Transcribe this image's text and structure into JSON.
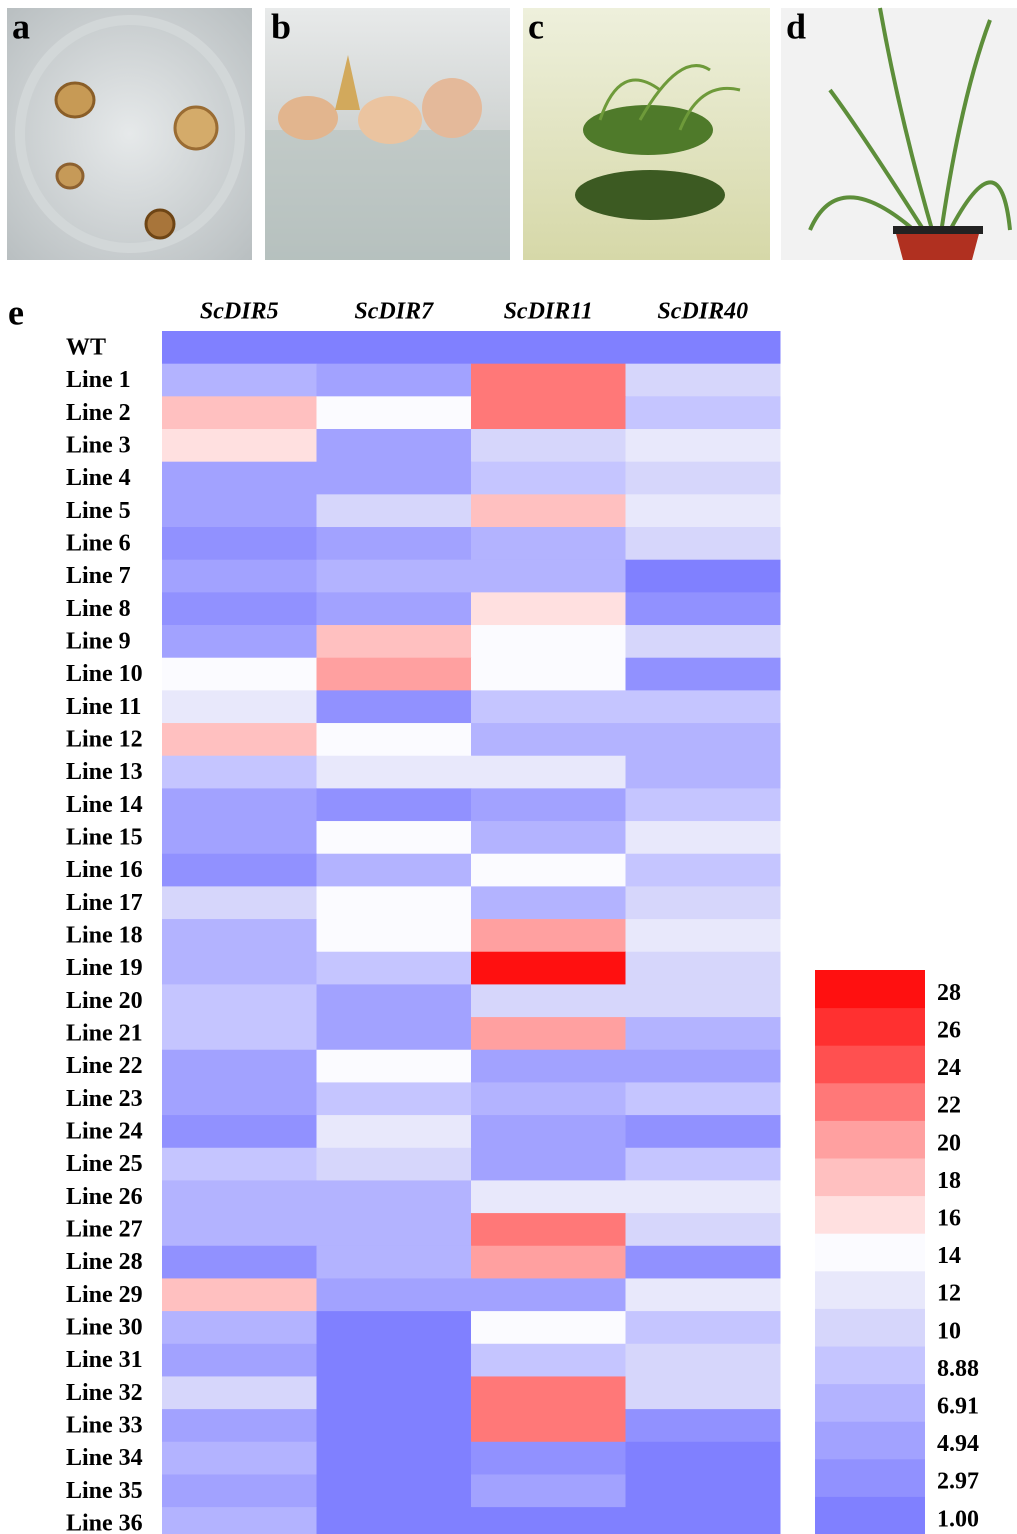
{
  "panels": [
    "a",
    "b",
    "c",
    "d"
  ],
  "chart_data": {
    "type": "heatmap",
    "panel_label": "e",
    "columns": [
      "ScDIR5",
      "ScDIR7",
      "ScDIR11",
      "ScDIR40"
    ],
    "rows": [
      "WT",
      "Line 1",
      "Line 2",
      "Line 3",
      "Line 4",
      "Line 5",
      "Line 6",
      "Line 7",
      "Line 8",
      "Line 9",
      "Line 10",
      "Line 11",
      "Line 12",
      "Line 13",
      "Line 14",
      "Line 15",
      "Line 16",
      "Line 17",
      "Line 18",
      "Line 19",
      "Line 20",
      "Line 21",
      "Line 22",
      "Line 23",
      "Line 24",
      "Line 25",
      "Line 26",
      "Line 27",
      "Line 28",
      "Line 29",
      "Line 30",
      "Line 31",
      "Line 32",
      "Line 33",
      "Line 34",
      "Line 35",
      "Line 36"
    ],
    "values": [
      [
        1,
        1,
        1,
        1
      ],
      [
        6.91,
        4.94,
        22,
        10
      ],
      [
        18,
        14,
        22,
        8.88
      ],
      [
        16,
        4.94,
        10,
        12
      ],
      [
        4.94,
        4.94,
        8.88,
        10
      ],
      [
        4.94,
        10,
        18,
        12
      ],
      [
        2.97,
        4.94,
        6.91,
        10
      ],
      [
        4.94,
        6.91,
        6.91,
        1
      ],
      [
        2.97,
        4.94,
        16,
        2.97
      ],
      [
        4.94,
        18,
        14,
        10
      ],
      [
        14,
        20,
        14,
        2.97
      ],
      [
        12,
        2.97,
        8.88,
        8.88
      ],
      [
        18,
        14,
        6.91,
        6.91
      ],
      [
        8.88,
        12,
        12,
        6.91
      ],
      [
        4.94,
        2.97,
        4.94,
        8.88
      ],
      [
        4.94,
        14,
        6.91,
        12
      ],
      [
        2.97,
        6.91,
        14,
        8.88
      ],
      [
        10,
        14,
        6.91,
        10
      ],
      [
        6.91,
        14,
        20,
        12
      ],
      [
        6.91,
        8.88,
        28,
        10
      ],
      [
        8.88,
        4.94,
        10,
        10
      ],
      [
        8.88,
        4.94,
        20,
        6.91
      ],
      [
        4.94,
        14,
        4.94,
        4.94
      ],
      [
        4.94,
        8.88,
        6.91,
        8.88
      ],
      [
        2.97,
        12,
        4.94,
        2.97
      ],
      [
        8.88,
        10,
        4.94,
        8.88
      ],
      [
        6.91,
        6.91,
        12,
        12
      ],
      [
        6.91,
        6.91,
        22,
        10
      ],
      [
        2.97,
        6.91,
        20,
        2.97
      ],
      [
        18,
        4.94,
        4.94,
        12
      ],
      [
        6.91,
        1,
        14,
        8.88
      ],
      [
        4.94,
        1,
        8.88,
        10
      ],
      [
        10,
        1,
        22,
        10
      ],
      [
        4.94,
        1,
        22,
        2.97
      ],
      [
        6.91,
        1,
        2.97,
        1
      ],
      [
        4.94,
        1,
        4.94,
        1
      ],
      [
        6.91,
        1,
        1,
        1
      ]
    ],
    "colorbar": {
      "ticks": [
        {
          "value": 1,
          "label": "1.00"
        },
        2.97,
        4.94,
        6.91,
        8.88,
        10,
        12,
        14,
        16,
        18,
        20,
        22,
        24,
        26,
        28
      ],
      "colors": [
        "#8080ff",
        "#9191ff",
        "#a2a2ff",
        "#b3b3ff",
        "#c5c5ff",
        "#d6d6fb",
        "#e8e8fb",
        "#fbfbff",
        "#ffe0e0",
        "#ffc0c0",
        "#ffa0a0",
        "#ff7878",
        "#ff5050",
        "#ff3030",
        "#ff1010"
      ]
    }
  }
}
